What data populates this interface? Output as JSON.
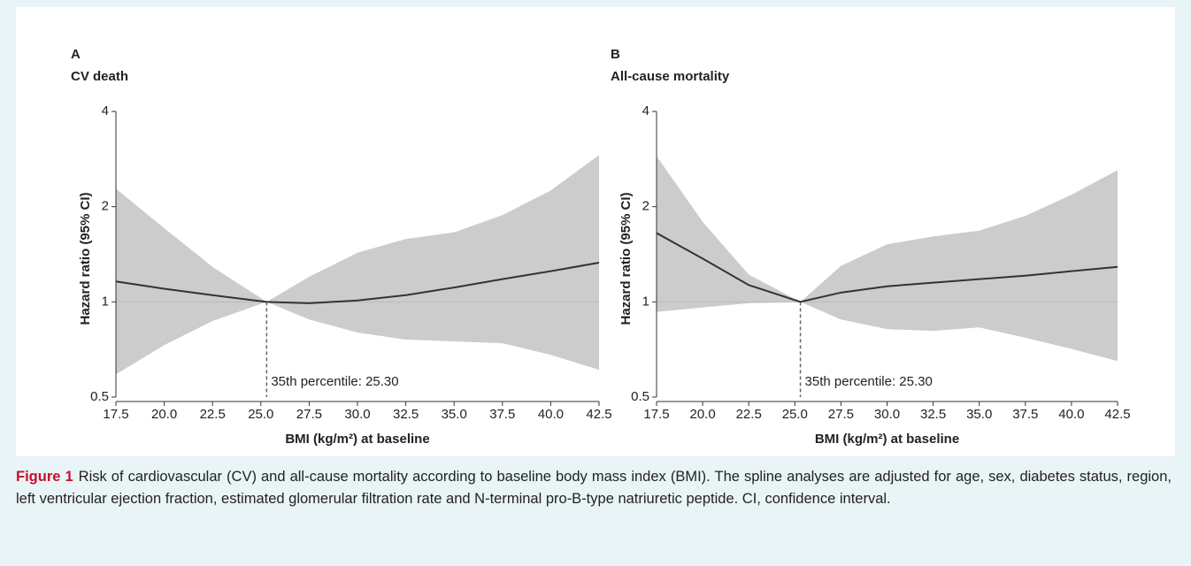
{
  "chart_data": [
    {
      "type": "line",
      "panel": "A",
      "title": "CV death",
      "ylabel": "Hazard ratio (95% CI)",
      "xlabel": "BMI (kg/m²) at baseline",
      "x": [
        17.5,
        20,
        22.5,
        25.3,
        27.5,
        30,
        32.5,
        35,
        37.5,
        40,
        42.5
      ],
      "values": [
        1.16,
        1.1,
        1.05,
        1.0,
        0.99,
        1.01,
        1.05,
        1.11,
        1.18,
        1.25,
        1.33
      ],
      "upper": [
        2.28,
        1.71,
        1.29,
        1.0,
        1.2,
        1.43,
        1.58,
        1.66,
        1.88,
        2.25,
        2.91
      ],
      "lower": [
        0.59,
        0.73,
        0.87,
        1.0,
        0.88,
        0.8,
        0.76,
        0.75,
        0.74,
        0.68,
        0.61
      ],
      "color": "#333333",
      "band_color": "#cccccc",
      "reference_x": 25.3,
      "reference_y": 1,
      "annotation": "35th percentile: 25.30",
      "log_y": true,
      "xlim": [
        17.5,
        42.5
      ],
      "ylim": [
        0.5,
        4
      ],
      "xticks": [
        17.5,
        {
          "value": 20,
          "label": "20.0"
        },
        22.5,
        {
          "value": 25,
          "label": "25.0"
        },
        27.5,
        {
          "value": 30,
          "label": "30.0"
        },
        32.5,
        {
          "value": 35,
          "label": "35.0"
        },
        37.5,
        {
          "value": 40,
          "label": "40.0"
        },
        42.5
      ],
      "yticks": [
        0.5,
        1,
        2,
        4
      ]
    },
    {
      "type": "line",
      "panel": "B",
      "title": "All-cause mortality",
      "ylabel": "Hazard ratio (95% CI)",
      "xlabel": "BMI (kg/m²) at baseline",
      "x": [
        17.5,
        20,
        22.5,
        25.3,
        27.5,
        30,
        32.5,
        35,
        37.5,
        40,
        42.5
      ],
      "values": [
        1.65,
        1.37,
        1.13,
        1.0,
        1.07,
        1.12,
        1.15,
        1.18,
        1.21,
        1.25,
        1.29
      ],
      "upper": [
        2.89,
        1.79,
        1.22,
        1.0,
        1.3,
        1.52,
        1.61,
        1.68,
        1.87,
        2.18,
        2.61
      ],
      "lower": [
        0.93,
        0.96,
        0.99,
        1.0,
        0.88,
        0.82,
        0.81,
        0.83,
        0.77,
        0.71,
        0.65
      ],
      "color": "#333333",
      "band_color": "#cccccc",
      "reference_x": 25.3,
      "reference_y": 1,
      "annotation": "35th percentile: 25.30",
      "log_y": true,
      "xlim": [
        17.5,
        42.5
      ],
      "ylim": [
        0.5,
        4
      ],
      "xticks": [
        17.5,
        {
          "value": 20,
          "label": "20.0"
        },
        22.5,
        {
          "value": 25,
          "label": "25.0"
        },
        27.5,
        {
          "value": 30,
          "label": "30.0"
        },
        32.5,
        {
          "value": 35,
          "label": "35.0"
        },
        37.5,
        {
          "value": 40,
          "label": "40.0"
        },
        42.5
      ],
      "yticks": [
        0.5,
        1,
        2,
        4
      ]
    }
  ],
  "figure": {
    "label": "Figure 1",
    "text": "Risk of cardiovascular (CV) and all-cause mortality according to baseline body mass index (BMI). The spline analyses are adjusted for age, sex, diabetes status, region, left ventricular ejection fraction, estimated glomerular filtration rate and N-terminal pro-B-type natriuretic peptide. CI, confidence interval."
  }
}
